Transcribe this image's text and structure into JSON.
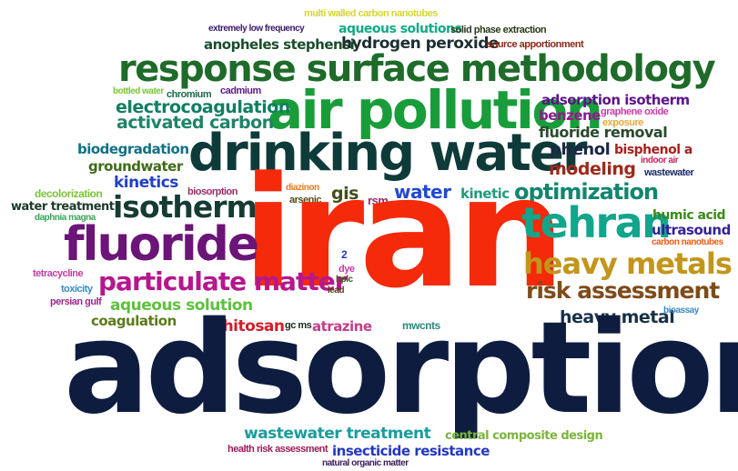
{
  "cloud": {
    "words": [
      {
        "text": "iran",
        "color": "#f42a0b",
        "size_rank": 1
      },
      {
        "text": "adsorption",
        "color": "#0e1d3f",
        "size_rank": 1
      },
      {
        "text": "drinking water",
        "color": "#0e3b39",
        "size_rank": 2
      },
      {
        "text": "air pollution",
        "color": "#199d3a",
        "size_rank": 2
      },
      {
        "text": "response surface methodology",
        "color": "#1e6b2a",
        "size_rank": 3
      },
      {
        "text": "fluoride",
        "color": "#6a1577",
        "size_rank": 3
      },
      {
        "text": "tehran",
        "color": "#11a58c",
        "size_rank": 3
      },
      {
        "text": "isotherm",
        "color": "#163b33",
        "size_rank": 4
      },
      {
        "text": "heavy metals",
        "color": "#c2961b",
        "size_rank": 4
      },
      {
        "text": "risk assessment",
        "color": "#7e4c1a",
        "size_rank": 4
      },
      {
        "text": "particulate matter",
        "color": "#b5178c",
        "size_rank": 4
      },
      {
        "text": "optimization",
        "color": "#11866e",
        "size_rank": 4
      },
      {
        "text": "activated carbon",
        "color": "#1f8467",
        "size_rank": 5
      },
      {
        "text": "electrocoagulation",
        "color": "#117e62",
        "size_rank": 5
      },
      {
        "text": "water",
        "color": "#2249d0",
        "size_rank": 5
      },
      {
        "text": "modeling",
        "color": "#9c2a1a",
        "size_rank": 5
      },
      {
        "text": "heavy metal",
        "color": "#193047",
        "size_rank": 5
      },
      {
        "text": "wastewater treatment",
        "color": "#1a9d9d",
        "size_rank": 5
      },
      {
        "text": "hydrogen peroxide",
        "color": "#1c2e30",
        "size_rank": 6
      },
      {
        "text": "anopheles stephensi",
        "color": "#1a4d2b",
        "size_rank": 6
      },
      {
        "text": "aqueous solutions",
        "color": "#12aa86",
        "size_rank": 6
      },
      {
        "text": "aqueous solution",
        "color": "#5cc23c",
        "size_rank": 6
      },
      {
        "text": "fluoride removal",
        "color": "#2a4a2d",
        "size_rank": 6
      },
      {
        "text": "kinetics",
        "color": "#2242c4",
        "size_rank": 6
      },
      {
        "text": "groundwater",
        "color": "#3d6c17",
        "size_rank": 6
      },
      {
        "text": "biodegradation",
        "color": "#127085",
        "size_rank": 6
      },
      {
        "text": "phenol",
        "color": "#1b2846",
        "size_rank": 6
      },
      {
        "text": "benzene",
        "color": "#8e1a8e",
        "size_rank": 6
      },
      {
        "text": "adsorption isotherm",
        "color": "#5e1488",
        "size_rank": 6
      },
      {
        "text": "gis",
        "color": "#3f4f1b",
        "size_rank": 6
      },
      {
        "text": "kinetic",
        "color": "#1d9d7a",
        "size_rank": 6
      },
      {
        "text": "coagulation",
        "color": "#5c7a1b",
        "size_rank": 6
      },
      {
        "text": "chitosan",
        "color": "#d21e2a",
        "size_rank": 6
      },
      {
        "text": "insecticide resistance",
        "color": "#2338c4",
        "size_rank": 6
      },
      {
        "text": "ultrasound",
        "color": "#342199",
        "size_rank": 6
      },
      {
        "text": "bisphenol a",
        "color": "#a5221e",
        "size_rank": 7
      },
      {
        "text": "humic acid",
        "color": "#3a8a1b",
        "size_rank": 7
      },
      {
        "text": "water treatment",
        "color": "#1b3a2b",
        "size_rank": 7
      },
      {
        "text": "decolorization",
        "color": "#7bc43a",
        "size_rank": 7
      },
      {
        "text": "atrazine",
        "color": "#c43c8a",
        "size_rank": 7
      },
      {
        "text": "central composite design",
        "color": "#7bb53a",
        "size_rank": 7
      },
      {
        "text": "rsm",
        "color": "#9c2a6a",
        "size_rank": 7
      },
      {
        "text": "mwcnts",
        "color": "#2b8a7b",
        "size_rank": 7
      },
      {
        "text": "multi walled carbon nanotubes",
        "color": "#d6d632",
        "size_rank": 8
      },
      {
        "text": "extremely low frequency",
        "color": "#3a1a6a",
        "size_rank": 8
      },
      {
        "text": "solid phase extraction",
        "color": "#2b3a1a",
        "size_rank": 8
      },
      {
        "text": "source apportionment",
        "color": "#8a2a1a",
        "size_rank": 8
      },
      {
        "text": "bottled water",
        "color": "#7bc43a",
        "size_rank": 8
      },
      {
        "text": "chromium",
        "color": "#1a6a4a",
        "size_rank": 8
      },
      {
        "text": "cadmium",
        "color": "#5a1a8a",
        "size_rank": 8
      },
      {
        "text": "graphene oxide",
        "color": "#c43ca5",
        "size_rank": 8
      },
      {
        "text": "exposure",
        "color": "#e8a83a",
        "size_rank": 8
      },
      {
        "text": "indoor air",
        "color": "#c42a5a",
        "size_rank": 8
      },
      {
        "text": "wastewater",
        "color": "#1a2a6a",
        "size_rank": 8
      },
      {
        "text": "biosorption",
        "color": "#9c2a6a",
        "size_rank": 8
      },
      {
        "text": "diazinon",
        "color": "#e87a1a",
        "size_rank": 8
      },
      {
        "text": "arsenic",
        "color": "#5a4a1a",
        "size_rank": 8
      },
      {
        "text": "daphnia magna",
        "color": "#3aa55a",
        "size_rank": 8
      },
      {
        "text": "carbon nanotubes",
        "color": "#f45a1a",
        "size_rank": 8
      },
      {
        "text": "tetracycline",
        "color": "#c43ca5",
        "size_rank": 8
      },
      {
        "text": "toxicity",
        "color": "#3a8ac4",
        "size_rank": 8
      },
      {
        "text": "persian gulf",
        "color": "#9c2a8a",
        "size_rank": 8
      },
      {
        "text": "2",
        "color": "#2a3ac4",
        "size_rank": 8
      },
      {
        "text": "dye",
        "color": "#c43ca5",
        "size_rank": 8
      },
      {
        "text": "hplc",
        "color": "#3a5a1a",
        "size_rank": 8
      },
      {
        "text": "lead",
        "color": "#5a3a1a",
        "size_rank": 8
      },
      {
        "text": "gc ms",
        "color": "#1a2a1a",
        "size_rank": 8
      },
      {
        "text": "bioassay",
        "color": "#3a8ac4",
        "size_rank": 8
      },
      {
        "text": "health risk assessment",
        "color": "#9c1a5a",
        "size_rank": 8
      },
      {
        "text": "natural organic matter",
        "color": "#3a1a5a",
        "size_rank": 8
      }
    ]
  }
}
